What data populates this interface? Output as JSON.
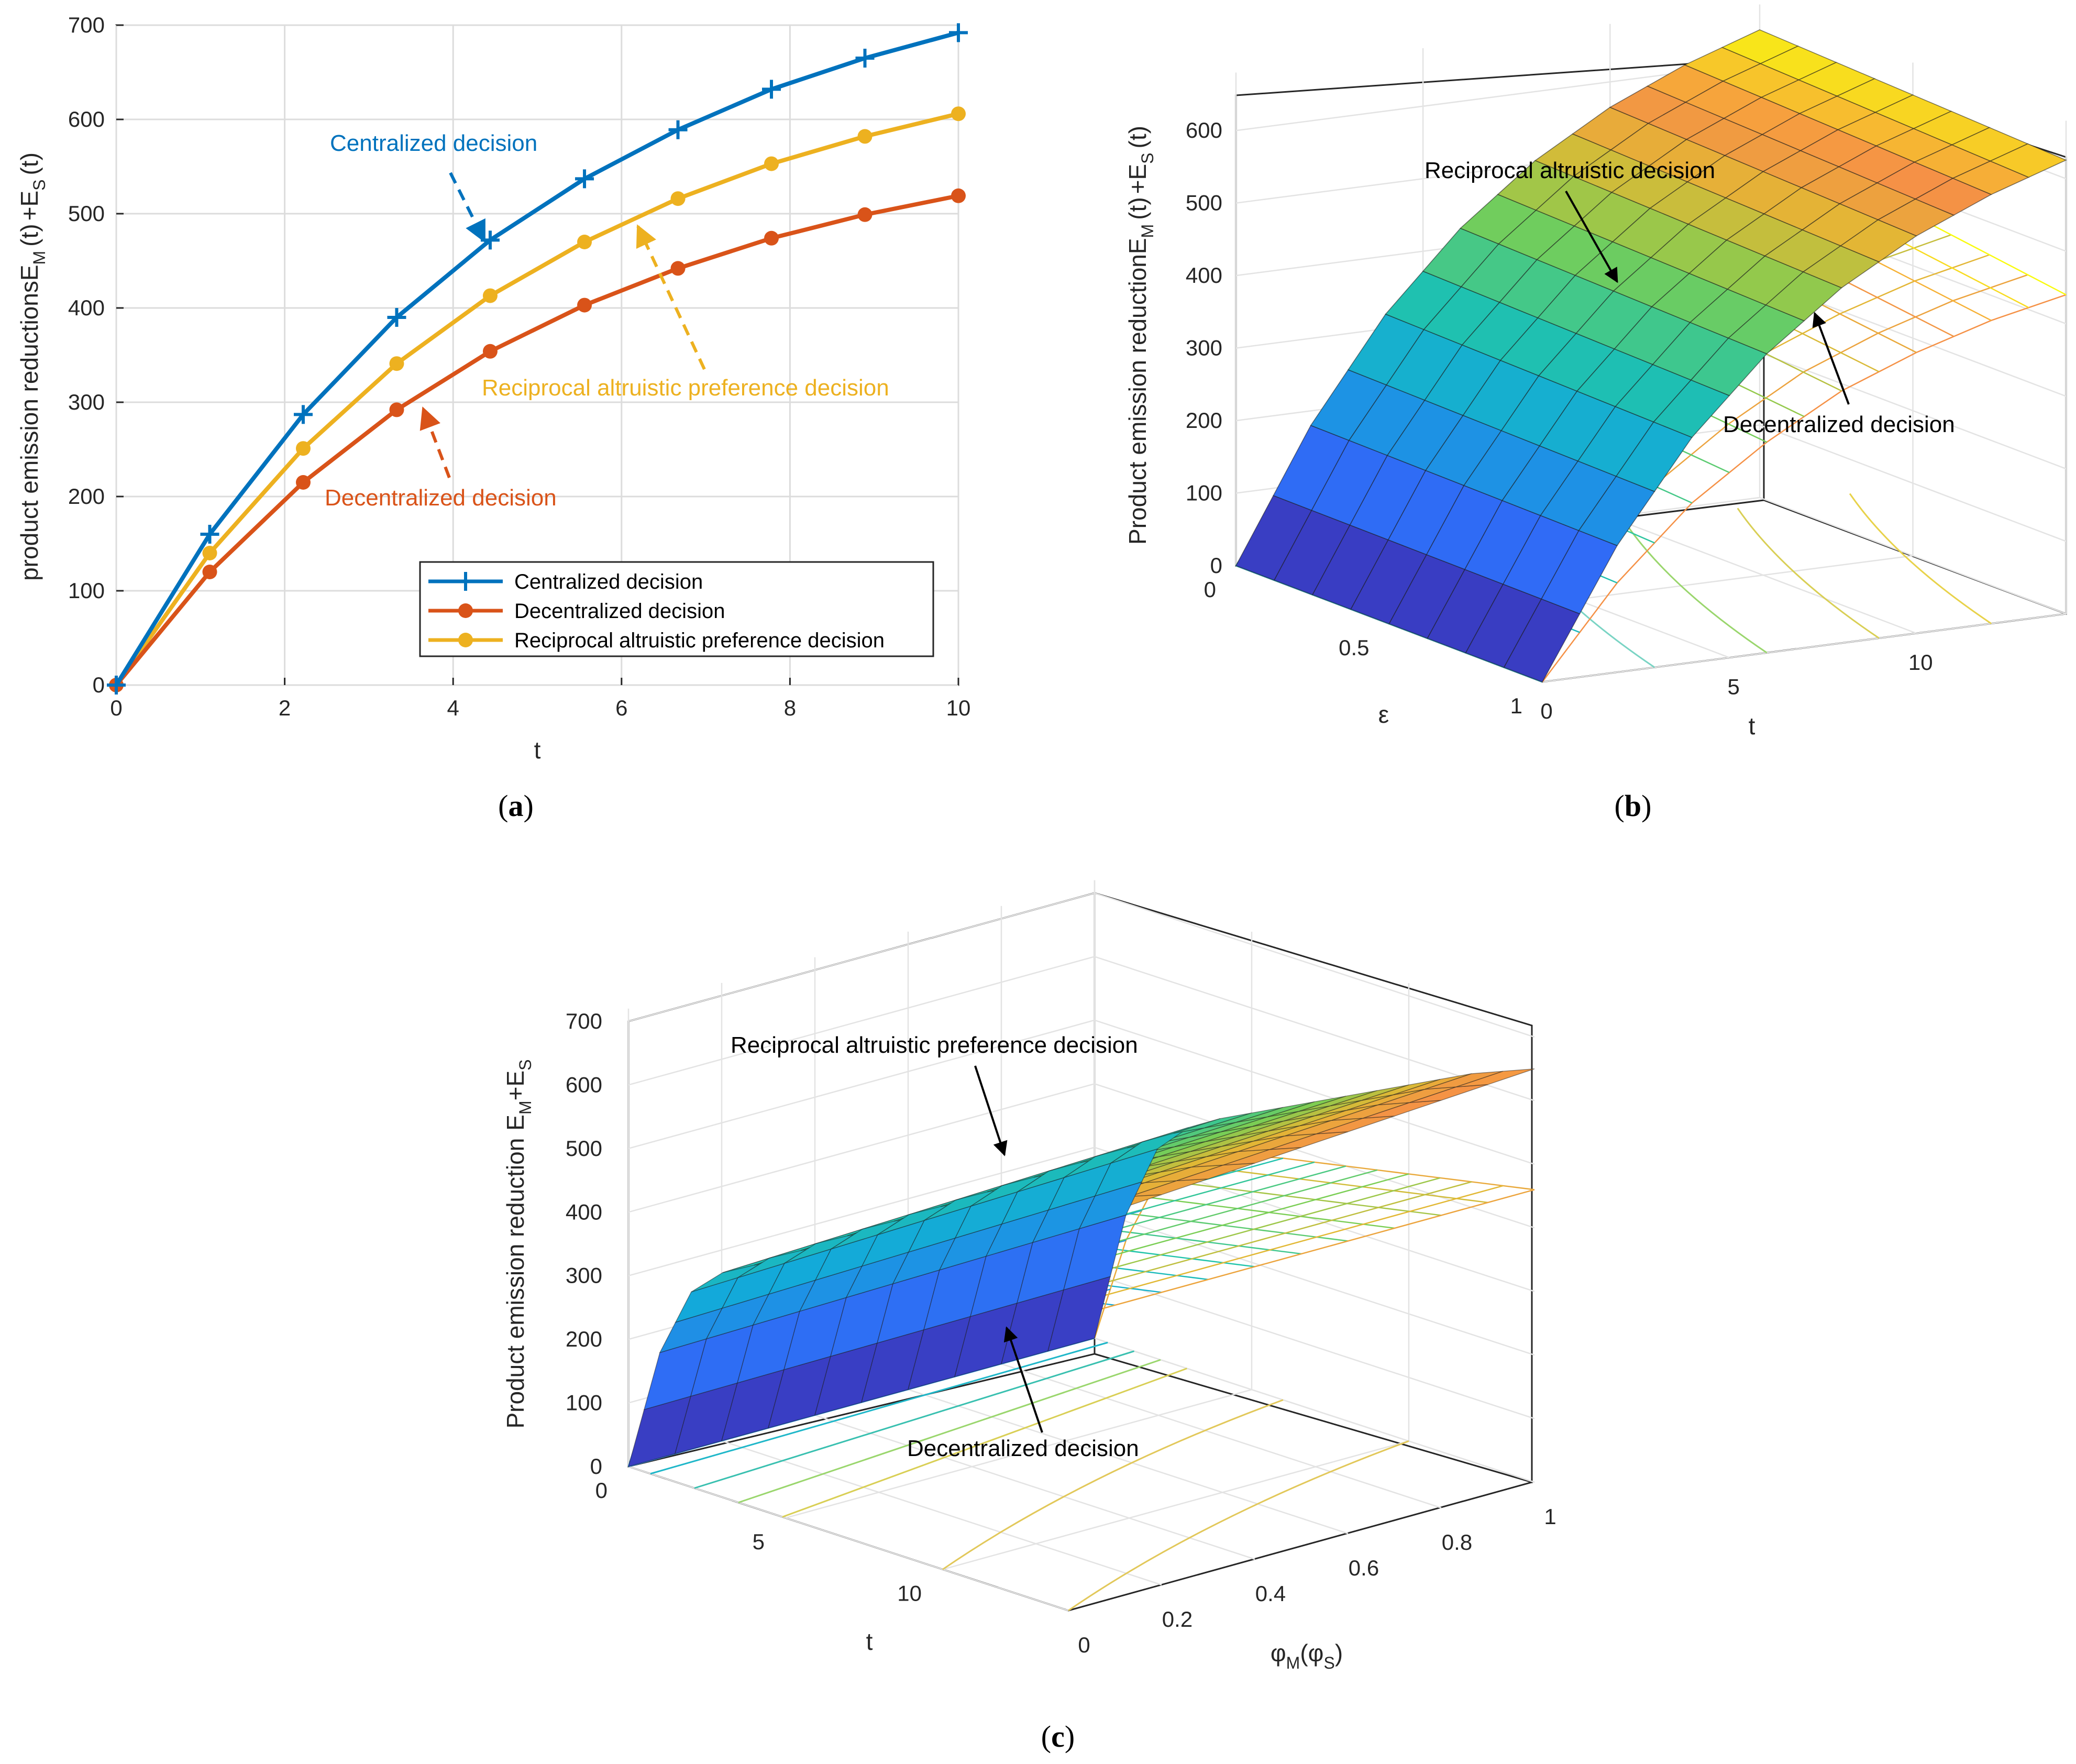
{
  "chart_data": [
    {
      "type": "line",
      "panel": "a",
      "caption_letter": "a",
      "xlabel": "t",
      "ylabel": "product emission reductions",
      "ylabel_math": [
        "E",
        "M",
        "(t)",
        "+E",
        "S",
        "(t)"
      ],
      "xlim": [
        0,
        10
      ],
      "ylim": [
        0,
        700
      ],
      "xticks": [
        "0",
        "2",
        "4",
        "6",
        "8",
        "10"
      ],
      "yticks": [
        "0",
        "100",
        "200",
        "300",
        "400",
        "500",
        "600",
        "700"
      ],
      "x": [
        0,
        1.11,
        2.22,
        3.33,
        4.44,
        5.56,
        6.67,
        7.78,
        8.89,
        10
      ],
      "series": [
        {
          "name": "Centralized decision",
          "color": "#0072BD",
          "marker": "plus",
          "values": [
            0,
            160,
            287,
            390,
            472,
            537,
            589,
            632,
            665,
            692
          ]
        },
        {
          "name": "Decentralized decision",
          "color": "#D95319",
          "marker": "dot",
          "values": [
            0,
            120,
            215,
            292,
            354,
            403,
            442,
            474,
            499,
            519
          ]
        },
        {
          "name": "Reciprocal altruistic preference decision",
          "color": "#EDB120",
          "marker": "dot",
          "values": [
            0,
            140,
            251,
            341,
            413,
            470,
            516,
            553,
            582,
            606
          ]
        }
      ],
      "annotations": [
        {
          "text": "Centralized decision",
          "color": "#0072BD"
        },
        {
          "text": "Reciprocal altruistic preference decision",
          "color": "#EDB120"
        },
        {
          "text": "Decentralized decision",
          "color": "#D95319"
        }
      ]
    },
    {
      "type": "surface3d",
      "panel": "b",
      "caption_letter": "b",
      "xlabel": "ε",
      "ylabel": "t",
      "zlabel": "Product emission reduction",
      "zlabel_math": [
        "E",
        "M",
        "(t)",
        "+E",
        "S",
        "(t)"
      ],
      "xlim": [
        0,
        1
      ],
      "ylim": [
        0,
        14
      ],
      "zlim": [
        0,
        650
      ],
      "xticks": [
        "0",
        "0.5",
        "1"
      ],
      "yticks": [
        "0",
        "5",
        "10"
      ],
      "zticks": [
        "0",
        "100",
        "200",
        "300",
        "400",
        "500",
        "600"
      ],
      "series": [
        {
          "name": "Reciprocal altruistic decision",
          "style": "filled surface",
          "t": [
            0,
            2,
            4,
            6,
            8,
            10,
            12,
            14
          ],
          "values": [
            0,
            180,
            320,
            425,
            505,
            565,
            610,
            645
          ]
        },
        {
          "name": "Decentralized decision",
          "style": "mesh",
          "t": [
            0,
            2,
            4,
            6,
            8,
            10,
            12,
            14
          ],
          "values": [
            0,
            140,
            250,
            330,
            395,
            440,
            475,
            500
          ]
        }
      ],
      "annotations": [
        {
          "text": "Reciprocal altruistic decision"
        },
        {
          "text": "Decentralized decision"
        }
      ]
    },
    {
      "type": "surface3d",
      "panel": "c",
      "caption_letter": "c",
      "xlabel": "t",
      "ylabel": "φM(φS)",
      "ylabel_math": [
        "φ",
        "M",
        "(φ",
        "S",
        ")"
      ],
      "zlabel": "Product emission reduction",
      "zlabel_math": [
        "E",
        "M",
        "+E",
        "S"
      ],
      "xlim": [
        0,
        14
      ],
      "ylim": [
        0,
        1
      ],
      "zlim": [
        0,
        700
      ],
      "xticks": [
        "0",
        "5",
        "10"
      ],
      "yticks": [
        "0",
        "0.2",
        "0.4",
        "0.6",
        "0.8",
        "1"
      ],
      "zticks": [
        "0",
        "100",
        "200",
        "300",
        "400",
        "500",
        "600",
        "700"
      ],
      "series": [
        {
          "name": "Reciprocal altruistic preference decision",
          "style": "filled surface",
          "t": [
            0,
            1,
            2,
            3,
            4,
            6,
            8,
            10,
            12,
            14
          ],
          "values": [
            0,
            210,
            330,
            380,
            410,
            460,
            510,
            560,
            610,
            650
          ]
        },
        {
          "name": "Decentralized decision",
          "style": "mesh",
          "t": [
            0,
            1,
            2,
            3,
            4,
            6,
            8,
            10,
            12,
            14
          ],
          "values": [
            0,
            170,
            280,
            330,
            355,
            380,
            400,
            420,
            440,
            460
          ]
        }
      ],
      "annotations": [
        {
          "text": "Reciprocal altruistic preference decision"
        },
        {
          "text": "Decentralized decision"
        }
      ]
    }
  ]
}
